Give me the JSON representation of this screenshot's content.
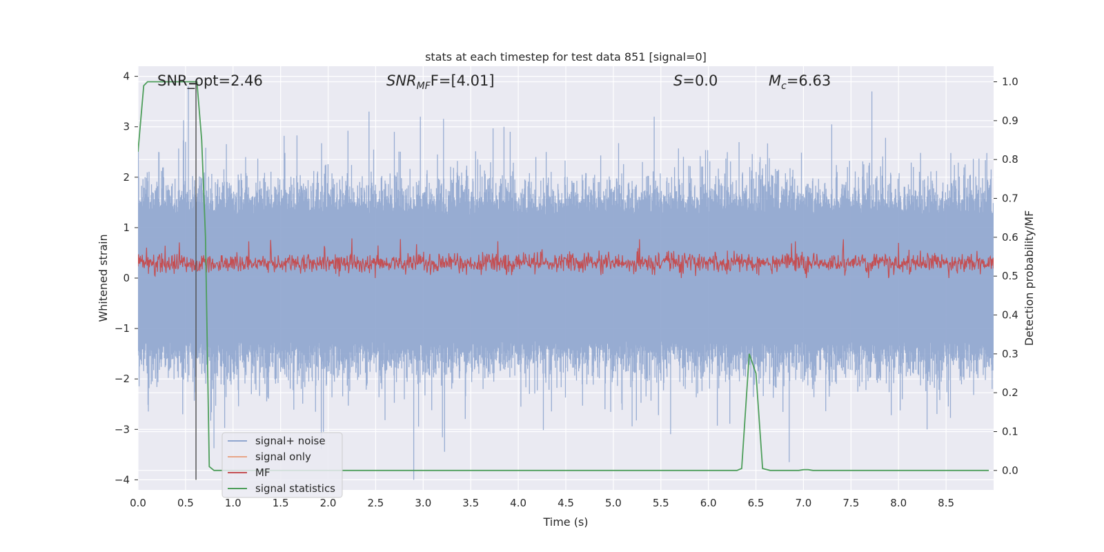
{
  "chart_data": {
    "type": "line",
    "title": "stats at each timestep for test data 851 [signal=0]",
    "xlabel": "Time (s)",
    "ylabel": "Whitened strain",
    "ylabel_right": "Detection probability/MF",
    "xlim": [
      0,
      9.0
    ],
    "ylim": [
      -4.2,
      4.2
    ],
    "ylim_right": [
      -0.05,
      1.04
    ],
    "x_ticks": [
      "0.0",
      "0.5",
      "1.0",
      "1.5",
      "2.0",
      "2.5",
      "3.0",
      "3.5",
      "4.0",
      "4.5",
      "5.0",
      "5.5",
      "6.0",
      "6.5",
      "7.0",
      "7.5",
      "8.0",
      "8.5"
    ],
    "y_ticks": [
      "4",
      "3",
      "2",
      "1",
      "0",
      "−1",
      "−2",
      "−3",
      "−4"
    ],
    "y_ticks_right": [
      "1.0",
      "0.9",
      "0.8",
      "0.7",
      "0.6",
      "0.5",
      "0.4",
      "0.3",
      "0.2",
      "0.1",
      "0.0"
    ],
    "grid": true,
    "legend_position": "lower-left",
    "annotations": {
      "snr_opt": "SNR_opt=2.46",
      "snr_mf_main": "SNR",
      "snr_mf_sub": "MF",
      "snr_mf_tail": "F=[4.01]",
      "s_main": "S",
      "s_tail": "=0.0",
      "mc_main": "M",
      "mc_sub": "c",
      "mc_tail": "=6.63"
    },
    "marker_time": 0.61,
    "series": [
      {
        "name": "signal+ noise",
        "color": "#8fa6cf",
        "description_scale": "strain",
        "noise_band": [
          -1.6,
          1.6
        ],
        "peak_max": 3.7,
        "peak_min": -4.0
      },
      {
        "name": "signal only",
        "color": "#e8a587",
        "values": []
      },
      {
        "name": "MF",
        "color": "#c44e52",
        "band_center": 0.3,
        "band_max": 1.0,
        "band_min": 0.0
      },
      {
        "name": "signal statistics",
        "color": "#4d9e5a",
        "x": [
          0.0,
          0.06,
          0.1,
          0.15,
          0.2,
          0.3,
          0.4,
          0.5,
          0.6,
          0.62,
          0.67,
          0.71,
          0.75,
          0.8,
          0.85,
          1.0,
          2.0,
          3.0,
          4.0,
          5.0,
          6.0,
          6.3,
          6.35,
          6.43,
          6.5,
          6.57,
          6.65,
          6.8,
          6.95,
          7.0,
          7.05,
          7.1,
          7.5,
          8.0,
          8.5,
          8.95
        ],
        "y": [
          0.82,
          0.99,
          1.0,
          1.0,
          1.0,
          1.0,
          1.0,
          1.0,
          1.0,
          1.0,
          0.85,
          0.6,
          0.01,
          0.0,
          0.0,
          0.0,
          0.0,
          0.0,
          0.0,
          0.0,
          0.0,
          0.0,
          0.005,
          0.3,
          0.25,
          0.005,
          0.0,
          0.0,
          0.0,
          0.002,
          0.002,
          0.0,
          0.0,
          0.0,
          0.0,
          0.0
        ]
      }
    ]
  }
}
